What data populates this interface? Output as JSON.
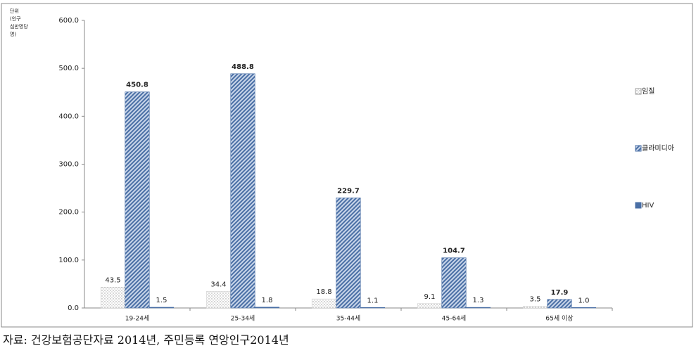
{
  "chart_data": {
    "type": "bar",
    "y_label_lines": [
      "단위",
      "(인구",
      "십만명당",
      "명)"
    ],
    "categories": [
      "19-24세",
      "25-34세",
      "35-44세",
      "45-64세",
      "65세 이상"
    ],
    "series": [
      {
        "name": "임질",
        "color": "#bfbfbf",
        "pattern": "dots",
        "values": [
          43.5,
          34.4,
          18.8,
          9.1,
          3.5
        ],
        "value_labels": [
          "43.5",
          "34.4",
          "18.8",
          "9.1",
          "3.5"
        ]
      },
      {
        "name": "클라미디아",
        "color": "#4a6fa5",
        "pattern": "hatch",
        "values": [
          450.8,
          488.8,
          229.7,
          104.7,
          17.9
        ],
        "value_labels": [
          "450.8",
          "488.8",
          "229.7",
          "104.7",
          "17.9"
        ]
      },
      {
        "name": "HIV",
        "color": "#4a6fa5",
        "pattern": "solid",
        "values": [
          1.5,
          1.8,
          1.1,
          1.3,
          1.0
        ],
        "value_labels": [
          "1.5",
          "1.8",
          "1.1",
          "1.3",
          "1.0"
        ]
      }
    ],
    "ylim": [
      0,
      600
    ],
    "yticks": [
      {
        "value": 0,
        "label": "0.0"
      },
      {
        "value": 100,
        "label": "100.0"
      },
      {
        "value": 200,
        "label": "200.0"
      },
      {
        "value": 300,
        "label": "300.0"
      },
      {
        "value": 400,
        "label": "400.0"
      },
      {
        "value": 500,
        "label": "500.0"
      },
      {
        "value": 600,
        "label": "600.0"
      }
    ],
    "legend": "right",
    "source": "자료: 건강보험공단자료 2014년, 주민등록 연앙인구2014년"
  }
}
